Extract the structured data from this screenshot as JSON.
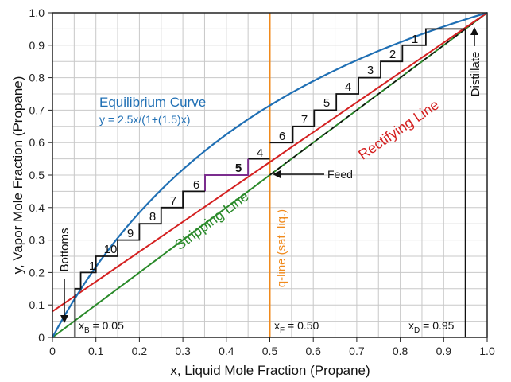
{
  "chart_data": {
    "type": "line",
    "title": "",
    "xlabel": "x, Liquid Mole Fraction (Propane)",
    "ylabel": "y, Vapor Mole Fraction (Propane)",
    "xlim": [
      0,
      1.0
    ],
    "ylim": [
      0,
      1.0
    ],
    "xticks": [
      "0",
      "0.1",
      "0.2",
      "0.3",
      "0.4",
      "0.5",
      "0.6",
      "0.7",
      "0.8",
      "0.9",
      "1.0"
    ],
    "yticks": [
      "0",
      "0.1",
      "0.2",
      "0.3",
      "0.4",
      "0.5",
      "0.6",
      "0.7",
      "0.8",
      "0.9",
      "1.0"
    ],
    "grid": true,
    "grid_minor_step": 0.05,
    "colors": {
      "equilibrium": "#1f6fb4",
      "rectifying": "#d42020",
      "stripping": "#2a8a2a",
      "q_line": "#f08a1c",
      "staircase": "#111111",
      "highlight_stage": "#7b2d8e"
    },
    "series": [
      {
        "name": "Equilibrium Curve",
        "formula": "y = 2.5x/(1+(1.5)x)",
        "alpha": 2.5
      },
      {
        "name": "Rectifying Line",
        "points": [
          [
            0,
            0.08
          ],
          [
            1.0,
            1.0
          ]
        ]
      },
      {
        "name": "Stripping Line",
        "points": [
          [
            0,
            0
          ],
          [
            1.0,
            1.0
          ]
        ]
      },
      {
        "name": "q-line (sat. liq.)",
        "points": [
          [
            0.5,
            0
          ],
          [
            0.5,
            1.0
          ]
        ]
      }
    ],
    "diagonal_dashed": [
      [
        0.5,
        0.5
      ],
      [
        1.0,
        1.0
      ]
    ],
    "staircase_upper": [
      [
        0.95,
        0.95
      ],
      [
        0.859,
        0.95
      ],
      [
        0.859,
        0.9
      ],
      [
        0.805,
        0.9
      ],
      [
        0.805,
        0.85
      ],
      [
        0.755,
        0.85
      ],
      [
        0.755,
        0.8
      ],
      [
        0.704,
        0.8
      ],
      [
        0.704,
        0.75
      ],
      [
        0.653,
        0.75
      ],
      [
        0.653,
        0.7
      ],
      [
        0.602,
        0.7
      ],
      [
        0.602,
        0.65
      ],
      [
        0.553,
        0.65
      ],
      [
        0.553,
        0.6
      ],
      [
        0.5,
        0.6
      ]
    ],
    "staircase_feed_stage": [
      [
        0.5,
        0.55
      ],
      [
        0.45,
        0.55
      ]
    ],
    "staircase_highlight": [
      [
        0.45,
        0.55
      ],
      [
        0.45,
        0.5
      ],
      [
        0.351,
        0.5
      ],
      [
        0.351,
        0.45
      ]
    ],
    "staircase_lower": [
      [
        0.351,
        0.45
      ],
      [
        0.3,
        0.45
      ],
      [
        0.3,
        0.4
      ],
      [
        0.25,
        0.4
      ],
      [
        0.25,
        0.35
      ],
      [
        0.2,
        0.35
      ],
      [
        0.2,
        0.3
      ],
      [
        0.15,
        0.3
      ],
      [
        0.15,
        0.25
      ],
      [
        0.1,
        0.25
      ],
      [
        0.1,
        0.2
      ],
      [
        0.065,
        0.2
      ],
      [
        0.065,
        0.15
      ],
      [
        0.052,
        0.15
      ],
      [
        0.052,
        0
      ]
    ],
    "distillate_line": [
      [
        0.95,
        0.95
      ],
      [
        0.95,
        0
      ]
    ],
    "stage_labels_upper": [
      "1",
      "2",
      "3",
      "4",
      "5",
      "7",
      "6"
    ],
    "stage_labels_lower": [
      "4",
      "5",
      "6",
      "7",
      "8",
      "9",
      "10",
      "1"
    ],
    "annotations": {
      "equilibrium_label": "Equilibrium Curve",
      "equilibrium_formula": "y = 2.5x/(1+(1.5)x)",
      "rectifying_label": "Rectifying Line",
      "stripping_label": "Stripping Line",
      "q_line_label": "q-line (sat. liq.)",
      "feed_label": "Feed",
      "distillate_label": "Distillate",
      "bottoms_label": "Bottoms",
      "xb_var": "x",
      "xb_sub": "B",
      "xb_val": " = 0.05",
      "xf_var": "x",
      "xf_sub": "F",
      "xf_val": " = 0.50",
      "xd_var": "x",
      "xd_sub": "D",
      "xd_val": " = 0.95"
    }
  }
}
